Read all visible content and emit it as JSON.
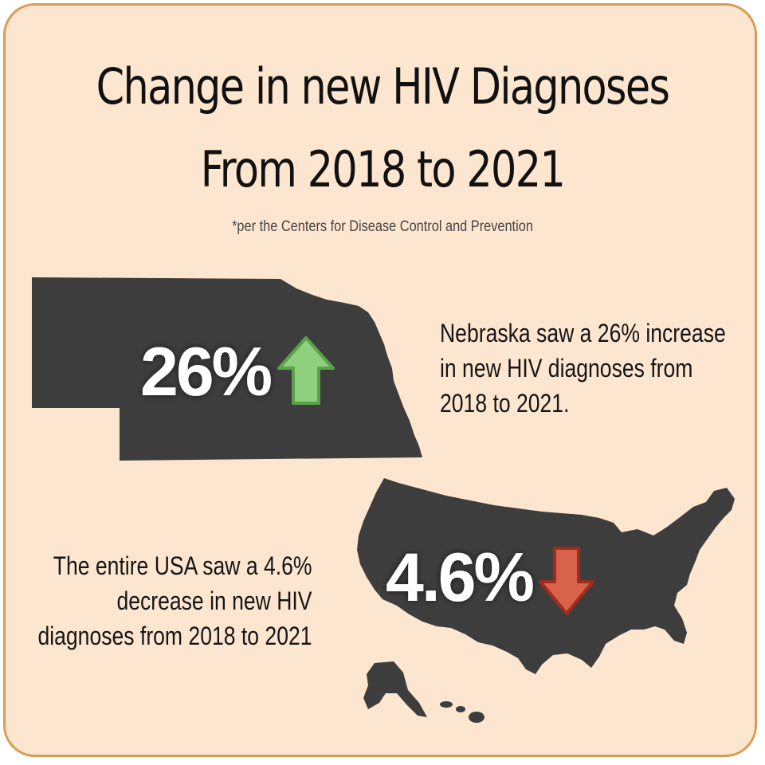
{
  "title": {
    "line1": "Change in new HIV Diagnoses",
    "line2": "From 2018 to 2021"
  },
  "subtitle": "*per the Centers for Disease Control and Prevention",
  "nebraska": {
    "stat": "26%",
    "direction": "increase",
    "arrow_icon": "arrow-up-icon",
    "arrow_color": "#8fd07e",
    "description_lines": [
      "Nebraska saw a 26% increase",
      "in new HIV diagnoses from",
      "2018 to 2021."
    ]
  },
  "usa": {
    "stat": "4.6%",
    "direction": "decrease",
    "arrow_icon": "arrow-down-icon",
    "arrow_color": "#d9624a",
    "description_lines": [
      "The entire USA saw a 4.6%",
      "decrease in new HIV",
      "diagnoses from 2018 to 2021"
    ]
  },
  "colors": {
    "background": "#fde6d0",
    "border": "#d99b55",
    "map_fill": "#3d3d3d",
    "text": "#111111"
  }
}
